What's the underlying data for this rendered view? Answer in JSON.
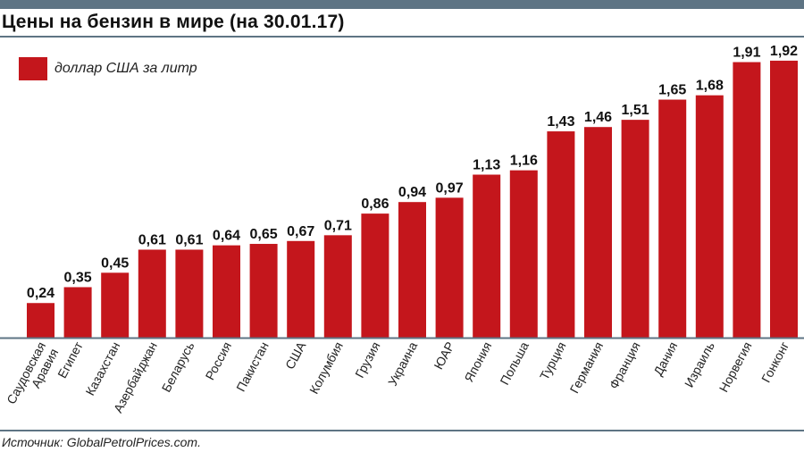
{
  "colors": {
    "bar": "#c4161c",
    "rule": "#5e7484"
  },
  "title": "Цены на бензин в мире (на 30.01.17)",
  "source": "Источник: GlobalPetrolPrices.com.",
  "chart_data": {
    "type": "bar",
    "title": "Цены на бензин в мире (на 30.01.17)",
    "legend": {
      "entries": [
        "доллар США за литр"
      ],
      "placement": "top-left"
    },
    "categories": [
      "Саудовская Аравия",
      "Египет",
      "Казахстан",
      "Азербайджан",
      "Беларусь",
      "Россия",
      "Пакистан",
      "США",
      "Колумбия",
      "Грузия",
      "Украина",
      "ЮАР",
      "Япония",
      "Польша",
      "Турция",
      "Германия",
      "Франция",
      "Дания",
      "Израиль",
      "Норвегия",
      "Гонконг"
    ],
    "category_lines": [
      [
        "Саудовская",
        "Аравия"
      ],
      [
        "Египет"
      ],
      [
        "Казахстан"
      ],
      [
        "Азербайджан"
      ],
      [
        "Беларусь"
      ],
      [
        "Россия"
      ],
      [
        "Пакистан"
      ],
      [
        "США"
      ],
      [
        "Колумбия"
      ],
      [
        "Грузия"
      ],
      [
        "Украина"
      ],
      [
        "ЮАР"
      ],
      [
        "Япония"
      ],
      [
        "Польша"
      ],
      [
        "Турция"
      ],
      [
        "Германия"
      ],
      [
        "Франция"
      ],
      [
        "Дания"
      ],
      [
        "Израиль"
      ],
      [
        "Норвегия"
      ],
      [
        "Гонконг"
      ]
    ],
    "values": [
      0.24,
      0.35,
      0.45,
      0.61,
      0.61,
      0.64,
      0.65,
      0.67,
      0.71,
      0.86,
      0.94,
      0.97,
      1.13,
      1.16,
      1.43,
      1.46,
      1.51,
      1.65,
      1.68,
      1.91,
      1.92
    ],
    "value_labels": [
      "0,24",
      "0,35",
      "0,45",
      "0,61",
      "0,61",
      "0,64",
      "0,65",
      "0,67",
      "0,71",
      "0,86",
      "0,94",
      "0,97",
      "1,13",
      "1,16",
      "1,43",
      "1,46",
      "1,51",
      "1,65",
      "1,68",
      "1,91",
      "1,92"
    ],
    "xlabel": "",
    "ylabel": "",
    "ylim": [
      0,
      2
    ],
    "grid": false
  }
}
